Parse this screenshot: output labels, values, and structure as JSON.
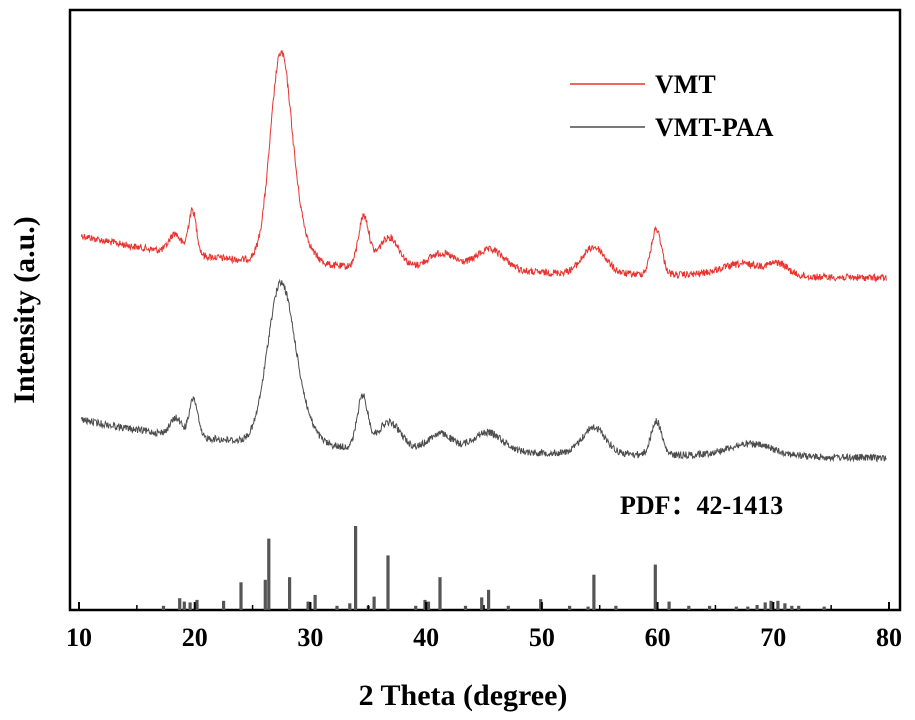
{
  "chart_data": {
    "type": "line",
    "title": "",
    "xlabel": "2 Theta (degree)",
    "ylabel": "Intensity (a.u.)",
    "xlim": [
      10,
      80
    ],
    "xticks": [
      10,
      20,
      30,
      40,
      50,
      60,
      70,
      80
    ],
    "yticks_shown": false,
    "legend_position": "top-right",
    "series": [
      {
        "name": "VMT",
        "color": "#e8332f",
        "baseline": 0.55,
        "peaks": [
          {
            "x": 18.3,
            "height": 0.16,
            "width": 0.5
          },
          {
            "x": 19.8,
            "height": 0.37,
            "width": 0.35
          },
          {
            "x": 27.4,
            "height": 1.55,
            "width": 0.9
          },
          {
            "x": 28.5,
            "height": 0.3,
            "width": 1.2
          },
          {
            "x": 34.6,
            "height": 0.42,
            "width": 0.45
          },
          {
            "x": 36.8,
            "height": 0.26,
            "width": 0.9
          },
          {
            "x": 41.3,
            "height": 0.14,
            "width": 1.2
          },
          {
            "x": 45.5,
            "height": 0.18,
            "width": 1.3
          },
          {
            "x": 54.5,
            "height": 0.22,
            "width": 1.0
          },
          {
            "x": 59.9,
            "height": 0.38,
            "width": 0.45
          },
          {
            "x": 67.5,
            "height": 0.1,
            "width": 2.0
          },
          {
            "x": 70.5,
            "height": 0.08,
            "width": 0.8
          }
        ]
      },
      {
        "name": "VMT-PAA",
        "color": "#4d4d4d",
        "baseline": 0.48,
        "peaks": [
          {
            "x": 18.4,
            "height": 0.14,
            "width": 0.5
          },
          {
            "x": 19.9,
            "height": 0.32,
            "width": 0.35
          },
          {
            "x": 27.3,
            "height": 1.1,
            "width": 1.1
          },
          {
            "x": 28.5,
            "height": 0.35,
            "width": 1.3
          },
          {
            "x": 34.5,
            "height": 0.42,
            "width": 0.45
          },
          {
            "x": 36.8,
            "height": 0.22,
            "width": 1.0
          },
          {
            "x": 41.2,
            "height": 0.14,
            "width": 1.0
          },
          {
            "x": 45.3,
            "height": 0.16,
            "width": 1.3
          },
          {
            "x": 54.5,
            "height": 0.22,
            "width": 1.0
          },
          {
            "x": 59.9,
            "height": 0.28,
            "width": 0.45
          },
          {
            "x": 68.0,
            "height": 0.1,
            "width": 2.0
          }
        ]
      }
    ],
    "reference_pattern": {
      "label": "PDF：42-1413",
      "color": "#555555",
      "lines": [
        {
          "x": 17.3,
          "h": 0.05
        },
        {
          "x": 18.7,
          "h": 0.14
        },
        {
          "x": 19.1,
          "h": 0.1
        },
        {
          "x": 19.6,
          "h": 0.09
        },
        {
          "x": 20.2,
          "h": 0.12
        },
        {
          "x": 22.5,
          "h": 0.11
        },
        {
          "x": 24.0,
          "h": 0.33
        },
        {
          "x": 26.1,
          "h": 0.36
        },
        {
          "x": 26.4,
          "h": 0.85
        },
        {
          "x": 28.2,
          "h": 0.39
        },
        {
          "x": 29.8,
          "h": 0.1
        },
        {
          "x": 30.4,
          "h": 0.18
        },
        {
          "x": 32.3,
          "h": 0.05
        },
        {
          "x": 33.4,
          "h": 0.08
        },
        {
          "x": 33.9,
          "h": 1.0
        },
        {
          "x": 35.0,
          "h": 0.05
        },
        {
          "x": 35.5,
          "h": 0.16
        },
        {
          "x": 36.7,
          "h": 0.65
        },
        {
          "x": 39.1,
          "h": 0.05
        },
        {
          "x": 39.9,
          "h": 0.12
        },
        {
          "x": 40.2,
          "h": 0.1
        },
        {
          "x": 41.2,
          "h": 0.39
        },
        {
          "x": 43.4,
          "h": 0.05
        },
        {
          "x": 44.8,
          "h": 0.15
        },
        {
          "x": 45.4,
          "h": 0.24
        },
        {
          "x": 47.1,
          "h": 0.05
        },
        {
          "x": 49.9,
          "h": 0.13
        },
        {
          "x": 52.4,
          "h": 0.05
        },
        {
          "x": 54.5,
          "h": 0.42
        },
        {
          "x": 54.0,
          "h": 0.04
        },
        {
          "x": 56.4,
          "h": 0.05
        },
        {
          "x": 59.8,
          "h": 0.54
        },
        {
          "x": 61.0,
          "h": 0.1
        },
        {
          "x": 62.7,
          "h": 0.05
        },
        {
          "x": 64.5,
          "h": 0.05
        },
        {
          "x": 66.8,
          "h": 0.04
        },
        {
          "x": 67.8,
          "h": 0.04
        },
        {
          "x": 68.6,
          "h": 0.06
        },
        {
          "x": 69.3,
          "h": 0.09
        },
        {
          "x": 69.8,
          "h": 0.11
        },
        {
          "x": 70.4,
          "h": 0.11
        },
        {
          "x": 71.0,
          "h": 0.08
        },
        {
          "x": 71.6,
          "h": 0.05
        },
        {
          "x": 72.2,
          "h": 0.05
        },
        {
          "x": 74.4,
          "h": 0.04
        }
      ]
    }
  }
}
